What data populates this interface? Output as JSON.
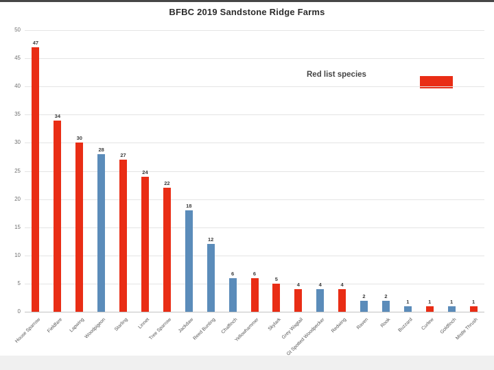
{
  "title": "BFBC 2019 Sandstone Ridge Farms",
  "legend": {
    "label": "Red list species"
  },
  "colors": {
    "red_list": "#e92d15",
    "other": "#5b8cba",
    "grid": "#e4e4e4",
    "axis": "#c2c2c2"
  },
  "chart_data": {
    "type": "bar",
    "title": "BFBC 2019 Sandstone Ridge Farms",
    "xlabel": "",
    "ylabel": "",
    "ylim": [
      0,
      50
    ],
    "yticks": [
      0,
      5,
      10,
      15,
      20,
      25,
      30,
      35,
      40,
      45,
      50
    ],
    "grid": true,
    "legend_position": "top-right",
    "legend_entries": [
      {
        "name": "Red list species",
        "color": "#e92d15"
      }
    ],
    "categories": [
      "House Sparrow",
      "Fieldfare",
      "Lapwing",
      "Woodpigeon",
      "Starling",
      "Linnet",
      "Tree Sparrow",
      "Jackdaw",
      "Reed Bunting",
      "Chaffinch",
      "Yellowhammer",
      "Skylark",
      "Grey Wagtail",
      "Gt Spotted Woodpecker",
      "Redwing",
      "Raven",
      "Rook",
      "Buzzard",
      "Curlew",
      "Goldfinch",
      "Mistle Thrush"
    ],
    "values": [
      47,
      34,
      30,
      28,
      27,
      24,
      22,
      18,
      12,
      6,
      6,
      5,
      4,
      4,
      4,
      2,
      2,
      1,
      1,
      1,
      1
    ],
    "bars": [
      {
        "label": "House Sparrow",
        "value": 47,
        "red_list": true
      },
      {
        "label": "Fieldfare",
        "value": 34,
        "red_list": true
      },
      {
        "label": "Lapwing",
        "value": 30,
        "red_list": true
      },
      {
        "label": "Woodpigeon",
        "value": 28,
        "red_list": false
      },
      {
        "label": "Starling",
        "value": 27,
        "red_list": true
      },
      {
        "label": "Linnet",
        "value": 24,
        "red_list": true
      },
      {
        "label": "Tree Sparrow",
        "value": 22,
        "red_list": true
      },
      {
        "label": "Jackdaw",
        "value": 18,
        "red_list": false
      },
      {
        "label": "Reed Bunting",
        "value": 12,
        "red_list": false
      },
      {
        "label": "Chaffinch",
        "value": 6,
        "red_list": false
      },
      {
        "label": "Yellowhammer",
        "value": 6,
        "red_list": true
      },
      {
        "label": "Skylark",
        "value": 5,
        "red_list": true
      },
      {
        "label": "Grey Wagtail",
        "value": 4,
        "red_list": true
      },
      {
        "label": "Gt Spotted Woodpecker",
        "value": 4,
        "red_list": false
      },
      {
        "label": "Redwing",
        "value": 4,
        "red_list": true
      },
      {
        "label": "Raven",
        "value": 2,
        "red_list": false
      },
      {
        "label": "Rook",
        "value": 2,
        "red_list": false
      },
      {
        "label": "Buzzard",
        "value": 1,
        "red_list": false
      },
      {
        "label": "Curlew",
        "value": 1,
        "red_list": true
      },
      {
        "label": "Goldfinch",
        "value": 1,
        "red_list": false
      },
      {
        "label": "Mistle Thrush",
        "value": 1,
        "red_list": true
      }
    ]
  }
}
